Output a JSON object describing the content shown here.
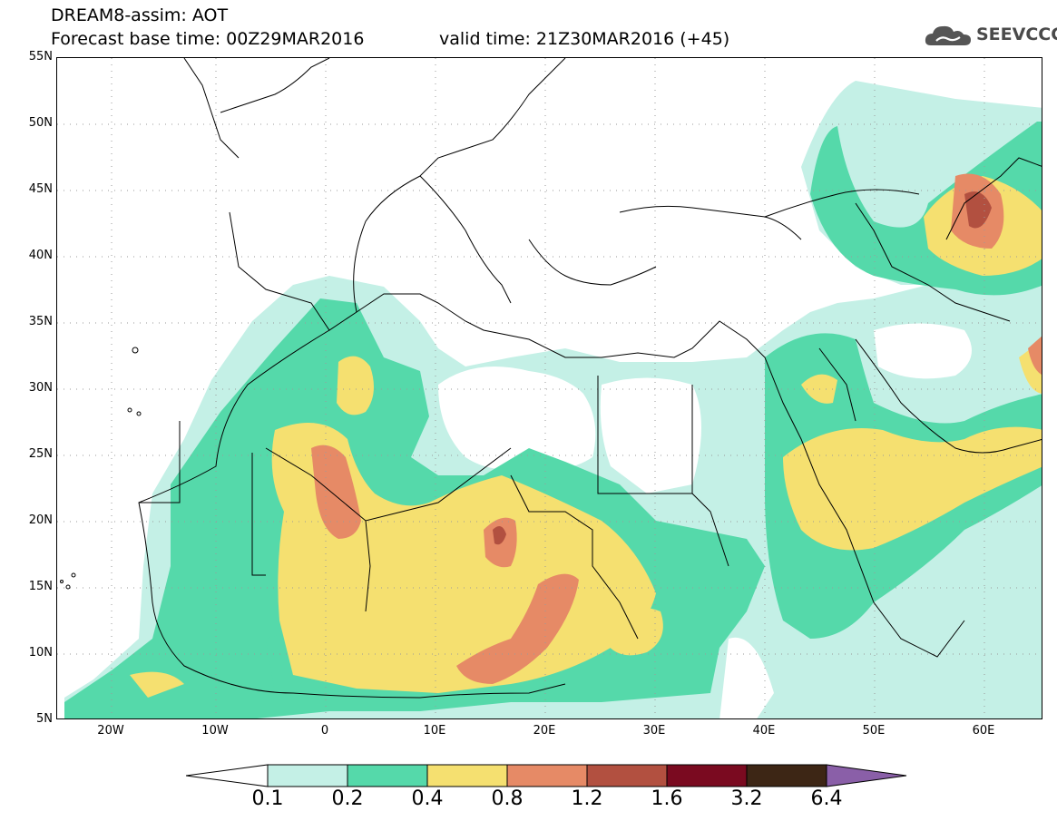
{
  "header": {
    "title": "DREAM8-assim: AOT",
    "base_time": "Forecast base time: 00Z29MAR2016",
    "valid_time": "valid time: 21Z30MAR2016 (+45)",
    "logo_text": "SEEVCCC"
  },
  "map": {
    "lat_labels": [
      "55N",
      "50N",
      "45N",
      "40N",
      "35N",
      "30N",
      "25N",
      "20N",
      "15N",
      "10N",
      "5N"
    ],
    "lon_labels": [
      "20W",
      "10W",
      "0",
      "10E",
      "20E",
      "30E",
      "40E",
      "50E",
      "60E"
    ],
    "lon_range": [
      -25,
      65
    ],
    "lat_range": [
      5,
      55
    ],
    "grid": true
  },
  "colorbar": {
    "labels": [
      "0.1",
      "0.2",
      "0.4",
      "0.8",
      "1.2",
      "1.6",
      "3.2",
      "6.4"
    ],
    "colors": [
      "#ffffff",
      "#c4f0e6",
      "#55d9aa",
      "#f5e070",
      "#e68a66",
      "#b25040",
      "#7a0a20",
      "#3d2615",
      "#8a5fa8"
    ]
  }
}
